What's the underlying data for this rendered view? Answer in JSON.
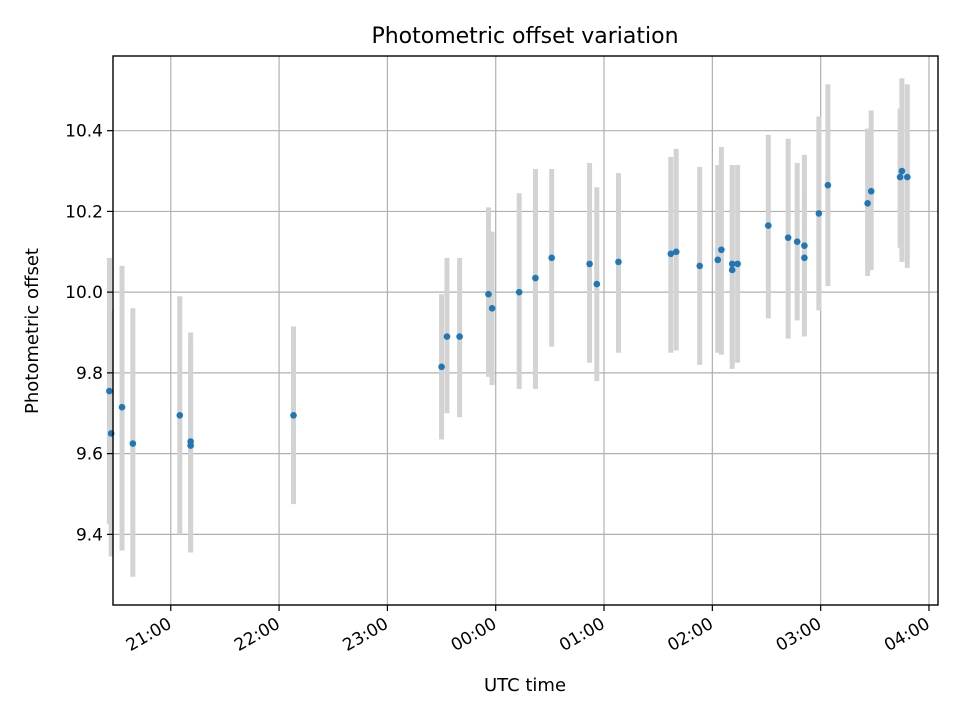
{
  "chart_data": {
    "type": "scatter",
    "title": "Photometric offset variation",
    "xlabel": "UTC time",
    "ylabel": "Photometric offset",
    "x_axis_kind": "time",
    "x_range": [
      "20:28",
      "04:05"
    ],
    "x_ticks": [
      "21:00",
      "22:00",
      "23:00",
      "00:00",
      "01:00",
      "02:00",
      "03:00",
      "04:00"
    ],
    "ylim": [
      9.225,
      10.585
    ],
    "y_ticks": [
      9.4,
      9.6,
      9.8,
      10.0,
      10.2,
      10.4
    ],
    "y_tick_labels": [
      "9.4",
      "9.6",
      "9.8",
      "10.0",
      "10.2",
      "10.4"
    ],
    "grid": true,
    "colors": {
      "marker": "#1f77b4",
      "errorbar": "#d3d3d3"
    },
    "points": [
      {
        "t": "20:26",
        "y": 9.755,
        "lo": 9.425,
        "hi": 10.085
      },
      {
        "t": "20:27",
        "y": 9.65,
        "lo": 9.345,
        "hi": 9.955
      },
      {
        "t": "20:33",
        "y": 9.715,
        "lo": 9.36,
        "hi": 10.065
      },
      {
        "t": "20:39",
        "y": 9.625,
        "lo": 9.295,
        "hi": 9.96
      },
      {
        "t": "21:05",
        "y": 9.695,
        "lo": 9.4,
        "hi": 9.99
      },
      {
        "t": "21:11",
        "y": 9.62,
        "lo": 9.355,
        "hi": 9.885
      },
      {
        "t": "21:11",
        "y": 9.63,
        "lo": 9.36,
        "hi": 9.9
      },
      {
        "t": "22:08",
        "y": 9.695,
        "lo": 9.475,
        "hi": 9.915
      },
      {
        "t": "23:30",
        "y": 9.815,
        "lo": 9.635,
        "hi": 9.995
      },
      {
        "t": "23:33",
        "y": 9.89,
        "lo": 9.7,
        "hi": 10.085
      },
      {
        "t": "23:40",
        "y": 9.89,
        "lo": 9.69,
        "hi": 10.085
      },
      {
        "t": "23:56",
        "y": 9.995,
        "lo": 9.79,
        "hi": 10.21
      },
      {
        "t": "23:58",
        "y": 9.96,
        "lo": 9.77,
        "hi": 10.15
      },
      {
        "t": "00:13",
        "y": 10.0,
        "lo": 9.76,
        "hi": 10.245
      },
      {
        "t": "00:22",
        "y": 10.035,
        "lo": 9.76,
        "hi": 10.305
      },
      {
        "t": "00:31",
        "y": 10.085,
        "lo": 9.865,
        "hi": 10.305
      },
      {
        "t": "00:52",
        "y": 10.07,
        "lo": 9.825,
        "hi": 10.32
      },
      {
        "t": "00:56",
        "y": 10.02,
        "lo": 9.78,
        "hi": 10.26
      },
      {
        "t": "01:08",
        "y": 10.075,
        "lo": 9.85,
        "hi": 10.295
      },
      {
        "t": "01:37",
        "y": 10.095,
        "lo": 9.85,
        "hi": 10.335
      },
      {
        "t": "01:40",
        "y": 10.1,
        "lo": 9.855,
        "hi": 10.355
      },
      {
        "t": "01:53",
        "y": 10.065,
        "lo": 9.82,
        "hi": 10.31
      },
      {
        "t": "02:03",
        "y": 10.08,
        "lo": 9.85,
        "hi": 10.315
      },
      {
        "t": "02:05",
        "y": 10.105,
        "lo": 9.845,
        "hi": 10.36
      },
      {
        "t": "02:11",
        "y": 10.055,
        "lo": 9.81,
        "hi": 10.315
      },
      {
        "t": "02:11",
        "y": 10.07,
        "lo": 9.82,
        "hi": 10.315
      },
      {
        "t": "02:14",
        "y": 10.07,
        "lo": 9.825,
        "hi": 10.315
      },
      {
        "t": "02:31",
        "y": 10.165,
        "lo": 9.935,
        "hi": 10.39
      },
      {
        "t": "02:42",
        "y": 10.135,
        "lo": 9.885,
        "hi": 10.38
      },
      {
        "t": "02:47",
        "y": 10.125,
        "lo": 9.93,
        "hi": 10.32
      },
      {
        "t": "02:51",
        "y": 10.115,
        "lo": 9.89,
        "hi": 10.34
      },
      {
        "t": "02:51",
        "y": 10.085,
        "lo": 9.935,
        "hi": 10.235
      },
      {
        "t": "02:59",
        "y": 10.195,
        "lo": 9.955,
        "hi": 10.435
      },
      {
        "t": "03:04",
        "y": 10.265,
        "lo": 10.015,
        "hi": 10.515
      },
      {
        "t": "03:26",
        "y": 10.22,
        "lo": 10.04,
        "hi": 10.405
      },
      {
        "t": "03:28",
        "y": 10.25,
        "lo": 10.055,
        "hi": 10.45
      },
      {
        "t": "03:44",
        "y": 10.285,
        "lo": 10.11,
        "hi": 10.455
      },
      {
        "t": "03:45",
        "y": 10.3,
        "lo": 10.075,
        "hi": 10.53
      },
      {
        "t": "03:48",
        "y": 10.285,
        "lo": 10.06,
        "hi": 10.515
      }
    ]
  }
}
